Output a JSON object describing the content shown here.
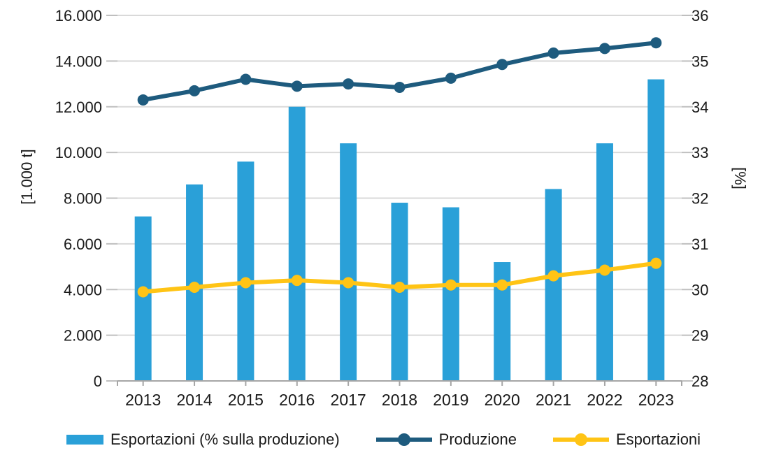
{
  "chart_data": {
    "type": "combo-bar-line",
    "title": "",
    "categories": [
      "2013",
      "2014",
      "2015",
      "2016",
      "2017",
      "2018",
      "2019",
      "2020",
      "2021",
      "2022",
      "2023"
    ],
    "series": [
      {
        "name": "Esportazioni (% sulla produzione)",
        "type": "bar",
        "axis": "right",
        "unit": "%",
        "color": "#2AA0D8",
        "values": [
          31.6,
          32.3,
          32.8,
          34.0,
          33.2,
          31.9,
          31.8,
          30.6,
          32.2,
          33.2,
          34.6
        ]
      },
      {
        "name": "Produzione",
        "type": "line",
        "axis": "left",
        "unit": "1.000 t",
        "color": "#1E5B7E",
        "values": [
          12300,
          12700,
          13200,
          12900,
          13000,
          12850,
          13250,
          13850,
          14350,
          14550,
          14800
        ]
      },
      {
        "name": "Esportazioni",
        "type": "line",
        "axis": "left",
        "unit": "1.000 t",
        "color": "#FFC415",
        "values": [
          3900,
          4100,
          4300,
          4400,
          4300,
          4100,
          4200,
          4200,
          4600,
          4850,
          5150
        ]
      }
    ],
    "left_axis": {
      "label": "[1.000 t]",
      "min": 0,
      "max": 16000,
      "tick_step": 2000,
      "tick_labels": [
        "0",
        "2.000",
        "4.000",
        "6.000",
        "8.000",
        "10.000",
        "12.000",
        "14.000",
        "16.000"
      ]
    },
    "right_axis": {
      "label": "[%]",
      "min": 28,
      "max": 36,
      "tick_step": 1,
      "tick_labels": [
        "28",
        "29",
        "30",
        "31",
        "32",
        "33",
        "34",
        "35",
        "36"
      ]
    },
    "grid": true,
    "legend_position": "bottom",
    "colors": {
      "gridline": "#D9D9D9",
      "axis_line": "#A6A6A6",
      "tick_mark": "#BFBFBF",
      "text": "#1A1A1A",
      "background": "#FFFFFF"
    }
  }
}
